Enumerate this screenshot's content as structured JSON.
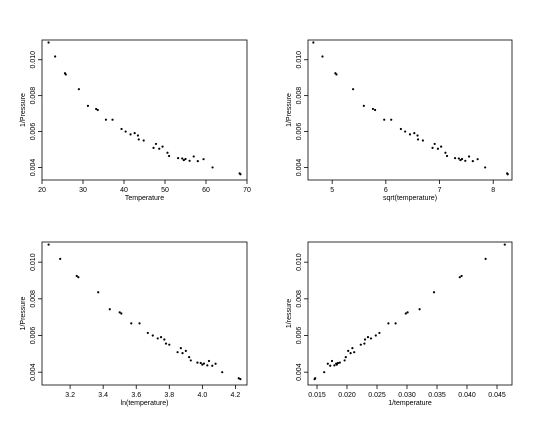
{
  "chart_data": [
    {
      "type": "scatter",
      "title": "",
      "xlabel": "Temperature",
      "ylabel": "1/Pressure",
      "xlim": [
        20,
        70
      ],
      "ylim": [
        0.0033,
        0.0111
      ],
      "xticks": [
        "20",
        "30",
        "40",
        "50",
        "60",
        "70"
      ],
      "yticks": [
        "0.004",
        "0.006",
        "0.008",
        "0.010"
      ],
      "x": [
        21.6,
        23.2,
        25.6,
        25.8,
        29.0,
        31.2,
        33.2,
        33.6,
        35.6,
        37.2,
        39.4,
        40.4,
        41.6,
        42.6,
        43.4,
        43.6,
        44.8,
        47.2,
        47.8,
        48.6,
        49.4,
        50.6,
        51.0,
        53.2,
        54.2,
        54.6,
        55.0,
        56.0,
        57.0,
        58.0,
        59.4,
        61.6,
        68.2,
        68.4
      ],
      "y": [
        0.01096,
        0.01018,
        0.00925,
        0.00918,
        0.00836,
        0.00743,
        0.00726,
        0.0072,
        0.00666,
        0.00666,
        0.00614,
        0.006,
        0.00584,
        0.00591,
        0.00578,
        0.00556,
        0.0055,
        0.00509,
        0.00531,
        0.00504,
        0.00516,
        0.00482,
        0.00464,
        0.00452,
        0.0045,
        0.00441,
        0.00447,
        0.00437,
        0.00461,
        0.00435,
        0.00446,
        0.004,
        0.00367,
        0.00362
      ]
    },
    {
      "type": "scatter",
      "title": "",
      "xlabel": "sqrt(temperature)",
      "ylabel": "1/Pressure",
      "xlim": [
        4.55,
        8.35
      ],
      "ylim": [
        0.0033,
        0.0111
      ],
      "xticks": [
        "5",
        "6",
        "7",
        "8"
      ],
      "yticks": [
        "0.004",
        "0.006",
        "0.008",
        "0.010"
      ],
      "x": [
        4.65,
        4.82,
        5.06,
        5.08,
        5.39,
        5.59,
        5.76,
        5.8,
        5.97,
        6.1,
        6.28,
        6.36,
        6.45,
        6.53,
        6.59,
        6.6,
        6.69,
        6.87,
        6.91,
        6.97,
        7.03,
        7.11,
        7.14,
        7.29,
        7.36,
        7.39,
        7.42,
        7.48,
        7.55,
        7.62,
        7.71,
        7.85,
        8.26,
        8.27
      ],
      "y": [
        0.01096,
        0.01018,
        0.00925,
        0.00918,
        0.00836,
        0.00743,
        0.00726,
        0.0072,
        0.00666,
        0.00666,
        0.00614,
        0.006,
        0.00584,
        0.00591,
        0.00578,
        0.00556,
        0.0055,
        0.00509,
        0.00531,
        0.00504,
        0.00516,
        0.00482,
        0.00464,
        0.00452,
        0.0045,
        0.00441,
        0.00447,
        0.00437,
        0.00461,
        0.00435,
        0.00446,
        0.004,
        0.00367,
        0.00362
      ]
    },
    {
      "type": "scatter",
      "title": "",
      "xlabel": "ln(temperature)",
      "ylabel": "1/Pressure",
      "xlim": [
        3.03,
        4.27
      ],
      "ylim": [
        0.0033,
        0.0111
      ],
      "xticks": [
        "3.2",
        "3.4",
        "3.6",
        "3.8",
        "4.0",
        "4.2"
      ],
      "yticks": [
        "0.004",
        "0.006",
        "0.008",
        "0.010"
      ],
      "x": [
        3.07,
        3.14,
        3.24,
        3.25,
        3.37,
        3.44,
        3.5,
        3.51,
        3.57,
        3.62,
        3.67,
        3.7,
        3.73,
        3.75,
        3.77,
        3.78,
        3.8,
        3.85,
        3.87,
        3.88,
        3.9,
        3.92,
        3.93,
        3.97,
        3.99,
        4.0,
        4.01,
        4.03,
        4.04,
        4.06,
        4.08,
        4.12,
        4.22,
        4.23
      ],
      "y": [
        0.01096,
        0.01018,
        0.00925,
        0.00918,
        0.00836,
        0.00743,
        0.00726,
        0.0072,
        0.00666,
        0.00666,
        0.00614,
        0.006,
        0.00584,
        0.00591,
        0.00578,
        0.00556,
        0.0055,
        0.00509,
        0.00531,
        0.00504,
        0.00516,
        0.00482,
        0.00464,
        0.00452,
        0.0045,
        0.00441,
        0.00447,
        0.00437,
        0.00461,
        0.00435,
        0.00446,
        0.004,
        0.00367,
        0.00362
      ]
    },
    {
      "type": "scatter",
      "title": "",
      "xlabel": "1/temperature",
      "ylabel": "1/ressure",
      "xlim": [
        0.0135,
        0.0475
      ],
      "ylim": [
        0.0033,
        0.0111
      ],
      "xticks": [
        "0.015",
        "0.020",
        "0.025",
        "0.030",
        "0.035",
        "0.040",
        "0.045"
      ],
      "yticks": [
        "0.004",
        "0.006",
        "0.008",
        "0.010"
      ],
      "x": [
        0.0463,
        0.0431,
        0.0391,
        0.0388,
        0.0345,
        0.0321,
        0.0301,
        0.0298,
        0.0281,
        0.0269,
        0.0254,
        0.0248,
        0.024,
        0.0235,
        0.023,
        0.0229,
        0.0223,
        0.0212,
        0.0209,
        0.0206,
        0.0202,
        0.0198,
        0.0196,
        0.0188,
        0.0185,
        0.0183,
        0.0182,
        0.0179,
        0.0175,
        0.0172,
        0.0168,
        0.0162,
        0.0147,
        0.0146
      ],
      "y": [
        0.01096,
        0.01018,
        0.00925,
        0.00918,
        0.00836,
        0.00743,
        0.00726,
        0.0072,
        0.00666,
        0.00666,
        0.00614,
        0.006,
        0.00584,
        0.00591,
        0.00578,
        0.00556,
        0.0055,
        0.00509,
        0.00531,
        0.00504,
        0.00516,
        0.00482,
        0.00464,
        0.00452,
        0.0045,
        0.00441,
        0.00447,
        0.00437,
        0.00461,
        0.00435,
        0.00446,
        0.004,
        0.00367,
        0.00362
      ]
    }
  ]
}
